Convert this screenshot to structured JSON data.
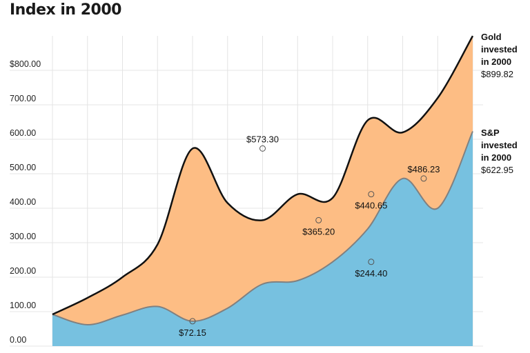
{
  "title": "Index in 2000",
  "colors": {
    "gold_fill": "#FDBD84",
    "sp_fill": "#77C1E0",
    "gold_line": "#111111",
    "sp_line": "#808080",
    "grid": "#e4e4e4"
  },
  "chart_data": {
    "type": "area",
    "title": "Index in 2000",
    "xlabel": "",
    "ylabel": "",
    "ylim": [
      0,
      900
    ],
    "y_ticks": [
      "0.00",
      "100.00",
      "200.00",
      "300.00",
      "400.00",
      "500.00",
      "600.00",
      "700.00",
      "$800.00"
    ],
    "x": [
      0,
      1,
      2,
      3,
      4,
      5,
      6,
      7,
      8,
      9,
      10,
      11,
      12
    ],
    "grid": true,
    "legend": "right-end labels",
    "series": [
      {
        "name": "Gold invested in 2000",
        "end_label": [
          "Gold",
          "invested",
          "in 2000"
        ],
        "end_value": "$899.82",
        "values": [
          92,
          140,
          200,
          295,
          573.3,
          415,
          365.2,
          440.65,
          430,
          655,
          620,
          720,
          899.82
        ]
      },
      {
        "name": "S&P invested in 2000",
        "end_label": [
          "S&P",
          "invested",
          "in 2000"
        ],
        "end_value": "$622.95",
        "values": [
          92,
          62,
          90,
          115,
          72.15,
          110,
          180,
          190,
          244.4,
          340,
          486.23,
          400,
          622.95
        ]
      }
    ],
    "point_labels": [
      {
        "series": 0,
        "x": 6,
        "value": 573.3,
        "text": "$573.30",
        "pos": "above"
      },
      {
        "series": 0,
        "x": 7.6,
        "value": 365.2,
        "text": "$365.20",
        "pos": "below"
      },
      {
        "series": 0,
        "x": 9.1,
        "value": 440.65,
        "text": "$440.65",
        "pos": "below"
      },
      {
        "series": 1,
        "x": 4,
        "value": 72.15,
        "text": "$72.15",
        "pos": "below"
      },
      {
        "series": 1,
        "x": 9.1,
        "value": 244.4,
        "text": "$244.40",
        "pos": "below"
      },
      {
        "series": 1,
        "x": 10.6,
        "value": 486.23,
        "text": "$486.23",
        "pos": "above"
      }
    ]
  }
}
